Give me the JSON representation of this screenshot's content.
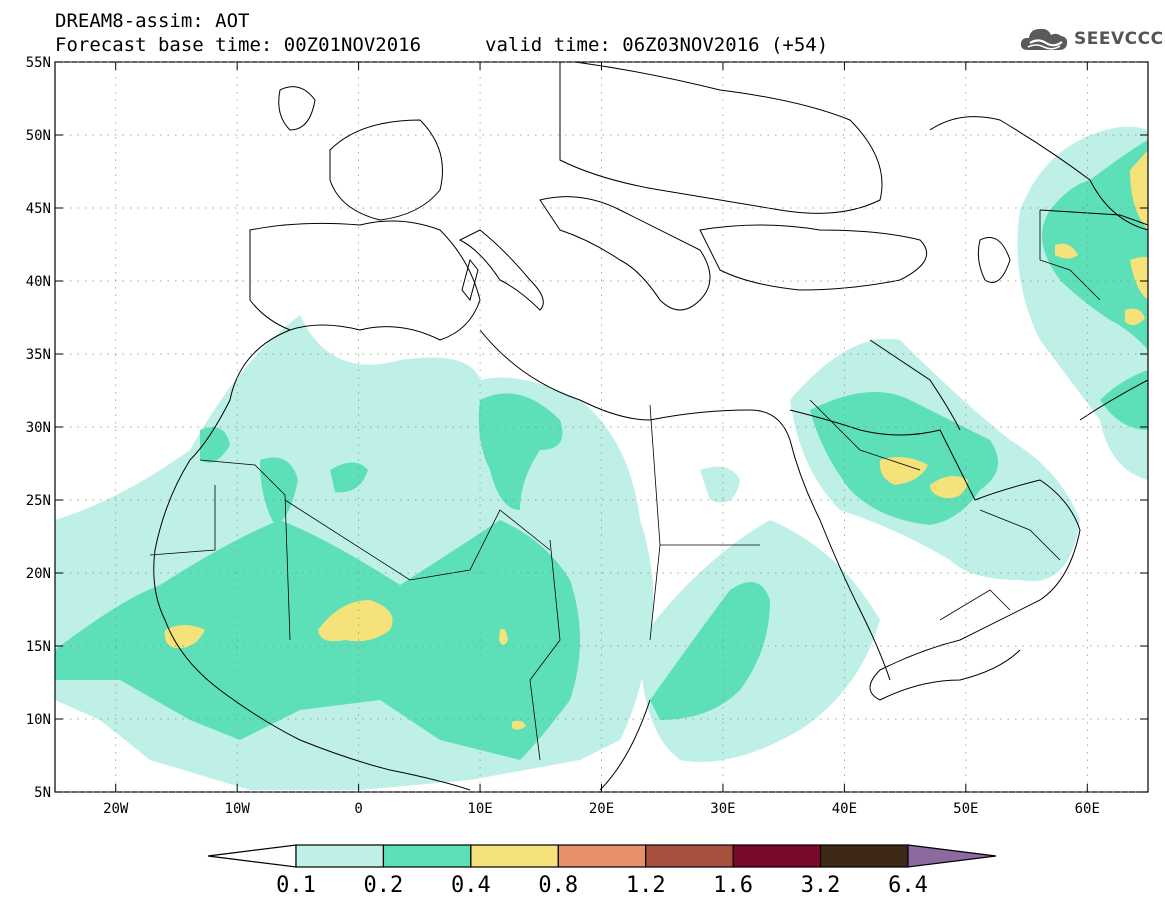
{
  "header": {
    "line1": "DREAM8-assim: AOT",
    "line2": "Forecast base time: 00Z01NOV2016",
    "valid": "valid time: 06Z03NOV2016 (+54)"
  },
  "logo": {
    "text": "SEEVCCC",
    "icon": "cloud-icon"
  },
  "map": {
    "lon_range": [
      -25,
      65
    ],
    "lat_range": [
      5,
      55
    ],
    "lon_ticks": [
      {
        "value": -20,
        "label": "20W"
      },
      {
        "value": -10,
        "label": "10W"
      },
      {
        "value": 0,
        "label": "0"
      },
      {
        "value": 10,
        "label": "10E"
      },
      {
        "value": 20,
        "label": "20E"
      },
      {
        "value": 30,
        "label": "30E"
      },
      {
        "value": 40,
        "label": "40E"
      },
      {
        "value": 50,
        "label": "50E"
      },
      {
        "value": 60,
        "label": "60E"
      }
    ],
    "lat_ticks": [
      {
        "value": 55,
        "label": "55N"
      },
      {
        "value": 50,
        "label": "50N"
      },
      {
        "value": 45,
        "label": "45N"
      },
      {
        "value": 40,
        "label": "40N"
      },
      {
        "value": 35,
        "label": "35N"
      },
      {
        "value": 30,
        "label": "30N"
      },
      {
        "value": 25,
        "label": "25N"
      },
      {
        "value": 20,
        "label": "20N"
      },
      {
        "value": 15,
        "label": "15N"
      },
      {
        "value": 10,
        "label": "10N"
      },
      {
        "value": 5,
        "label": "5N"
      }
    ],
    "grid": true
  },
  "colorbar": {
    "colors": [
      "#ffffff",
      "#bff0e8",
      "#5de0b8",
      "#f5e27a",
      "#e8906a",
      "#a8503e",
      "#7a0828",
      "#3e2818",
      "#8c6aa0"
    ],
    "labels": [
      "0.1",
      "0.2",
      "0.4",
      "0.8",
      "1.2",
      "1.6",
      "3.2",
      "6.4"
    ]
  }
}
